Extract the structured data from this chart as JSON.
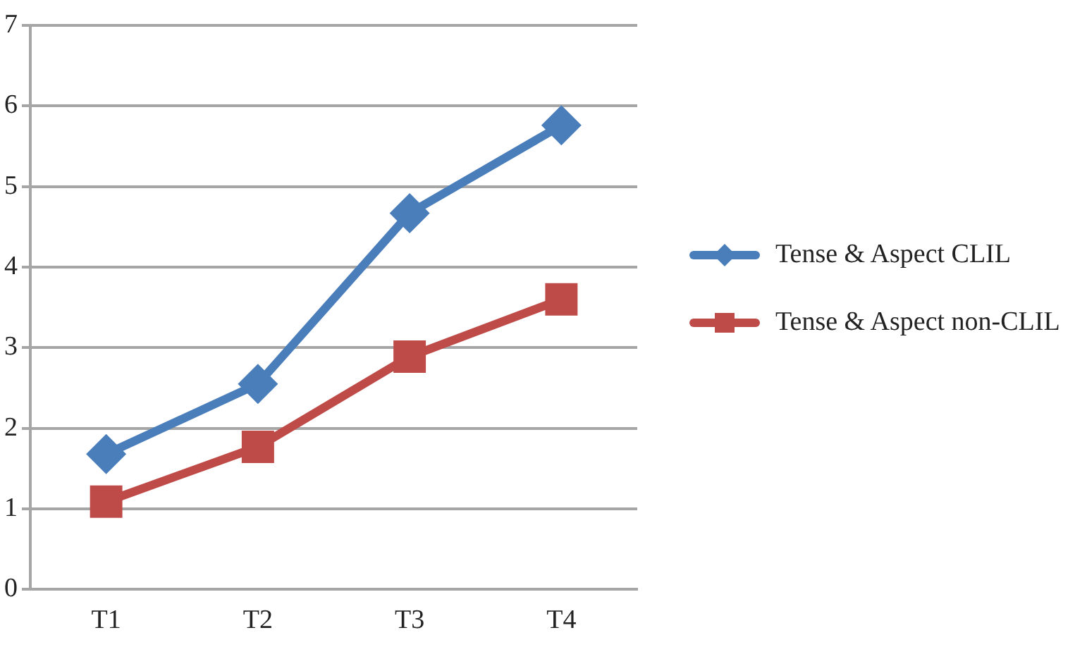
{
  "chart_data": {
    "type": "line",
    "categories": [
      "T1",
      "T2",
      "T3",
      "T4"
    ],
    "series": [
      {
        "name": "Tense & Aspect CLIL",
        "color": "#4a7ebb",
        "marker": "diamond",
        "values": [
          1.68,
          2.55,
          4.67,
          5.76
        ]
      },
      {
        "name": "Tense & Aspect non-CLIL",
        "color": "#be4b48",
        "marker": "square",
        "values": [
          1.09,
          1.77,
          2.89,
          3.6
        ]
      }
    ],
    "ylim": [
      0,
      7
    ],
    "yticks": [
      0,
      1,
      2,
      3,
      4,
      5,
      6,
      7
    ],
    "grid": "y",
    "legend": "right",
    "line_style": "solid"
  }
}
